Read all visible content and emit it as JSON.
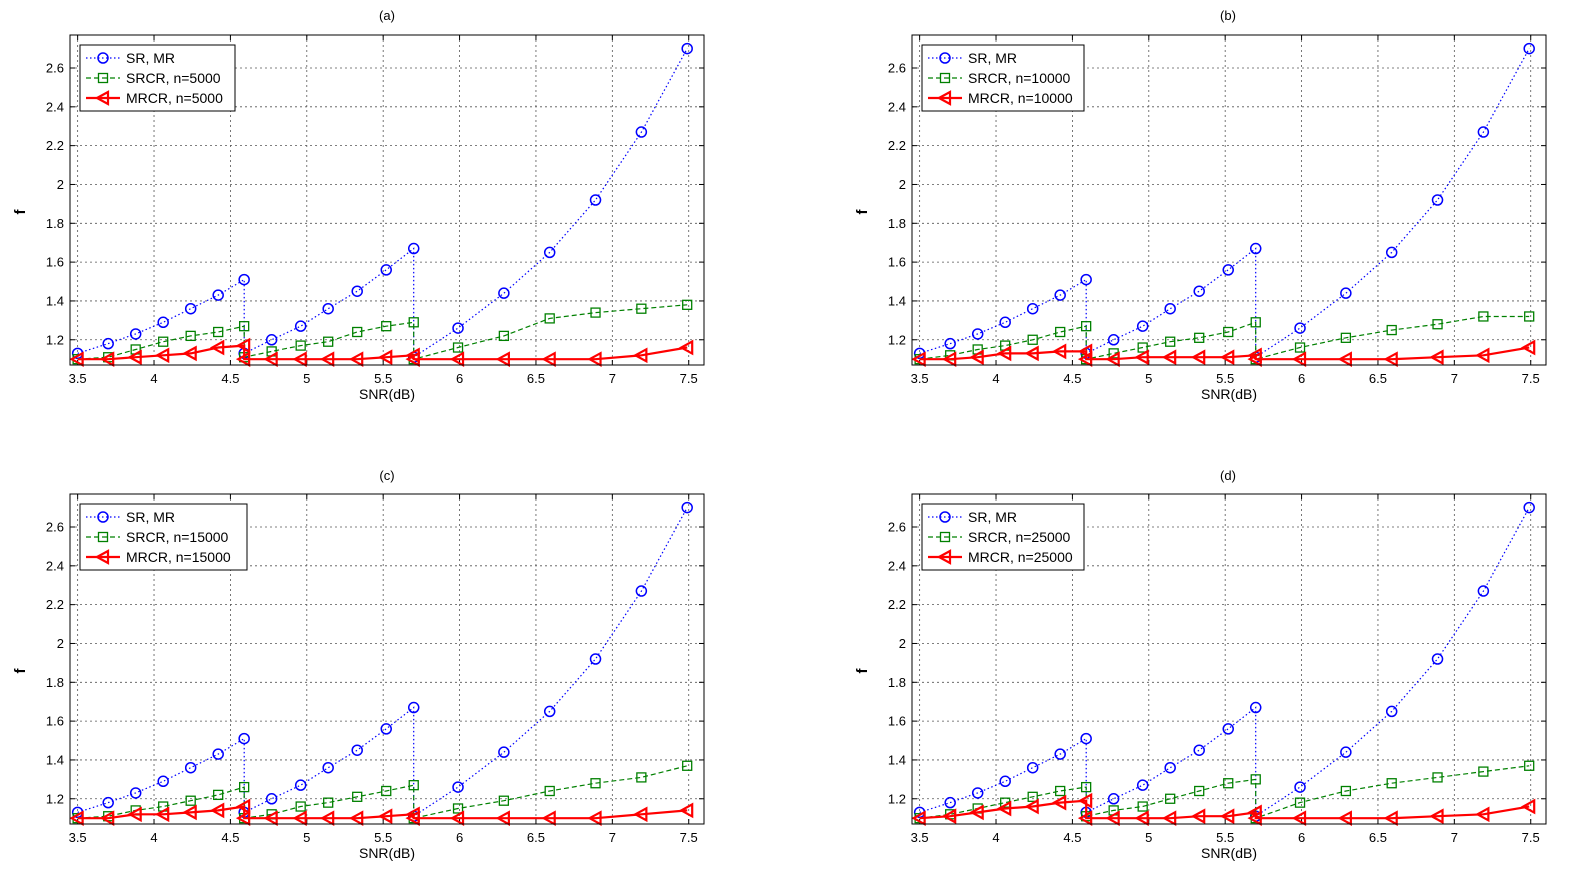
{
  "chart_data": [
    {
      "type": "line",
      "title": "(a)",
      "xlabel": "SNR(dB)",
      "ylabel": "f",
      "xlim": [
        3.45,
        7.6
      ],
      "ylim": [
        1.07,
        2.77
      ],
      "xticks": [
        3.5,
        4,
        4.5,
        5,
        5.5,
        6,
        6.5,
        7,
        7.5
      ],
      "xtick_labels": [
        "3.5",
        "4",
        "4.5",
        "5",
        "5.5",
        "6",
        "6.5",
        "7",
        "7.5"
      ],
      "yticks": [
        1.2,
        1.4,
        1.6,
        1.8,
        2.0,
        2.2,
        2.4,
        2.6
      ],
      "ytick_labels": [
        "1.2",
        "1.4",
        "1.6",
        "1.8",
        "2",
        "2.2",
        "2.4",
        "2.6"
      ],
      "grid": true,
      "legend_position": "top-left",
      "series": [
        {
          "name": "SR, MR",
          "color": "#0000ff",
          "line": "dotted",
          "marker": "circle",
          "x": [
            3.5,
            3.7,
            3.88,
            4.06,
            4.24,
            4.42,
            4.59,
            4.59,
            4.77,
            4.96,
            5.14,
            5.33,
            5.52,
            5.7,
            5.7,
            5.99,
            6.29,
            6.59,
            6.89,
            7.19,
            7.49
          ],
          "y": [
            1.13,
            1.18,
            1.23,
            1.29,
            1.36,
            1.43,
            1.51,
            1.13,
            1.2,
            1.27,
            1.36,
            1.45,
            1.56,
            1.67,
            1.11,
            1.26,
            1.44,
            1.65,
            1.92,
            2.27,
            2.7
          ]
        },
        {
          "name": "SRCR, n=5000",
          "color": "#008000",
          "line": "dashed",
          "marker": "square",
          "x": [
            3.5,
            3.7,
            3.88,
            4.06,
            4.24,
            4.42,
            4.59,
            4.59,
            4.77,
            4.96,
            5.14,
            5.33,
            5.52,
            5.7,
            5.7,
            5.99,
            6.29,
            6.59,
            6.89,
            7.19,
            7.49
          ],
          "y": [
            1.1,
            1.11,
            1.15,
            1.19,
            1.22,
            1.24,
            1.27,
            1.11,
            1.14,
            1.17,
            1.19,
            1.24,
            1.27,
            1.29,
            1.1,
            1.16,
            1.22,
            1.31,
            1.34,
            1.36,
            1.38
          ]
        },
        {
          "name": "MRCR, n=5000",
          "color": "#ff0000",
          "line": "solid",
          "marker": "triangle-left",
          "x": [
            3.5,
            3.7,
            3.88,
            4.06,
            4.24,
            4.42,
            4.59,
            4.59,
            4.77,
            4.96,
            5.14,
            5.33,
            5.52,
            5.7,
            5.7,
            5.99,
            6.29,
            6.59,
            6.89,
            7.19,
            7.49
          ],
          "y": [
            1.1,
            1.1,
            1.11,
            1.12,
            1.13,
            1.16,
            1.17,
            1.1,
            1.1,
            1.1,
            1.1,
            1.1,
            1.11,
            1.12,
            1.1,
            1.1,
            1.1,
            1.1,
            1.1,
            1.12,
            1.16
          ]
        }
      ]
    },
    {
      "type": "line",
      "title": "(b)",
      "xlabel": "SNR(dB)",
      "ylabel": "f",
      "xlim": [
        3.45,
        7.6
      ],
      "ylim": [
        1.07,
        2.77
      ],
      "xticks": [
        3.5,
        4,
        4.5,
        5,
        5.5,
        6,
        6.5,
        7,
        7.5
      ],
      "xtick_labels": [
        "3.5",
        "4",
        "4.5",
        "5",
        "5.5",
        "6",
        "6.5",
        "7",
        "7.5"
      ],
      "yticks": [
        1.2,
        1.4,
        1.6,
        1.8,
        2.0,
        2.2,
        2.4,
        2.6
      ],
      "ytick_labels": [
        "1.2",
        "1.4",
        "1.6",
        "1.8",
        "2",
        "2.2",
        "2.4",
        "2.6"
      ],
      "grid": true,
      "legend_position": "top-left",
      "series": [
        {
          "name": "SR, MR",
          "color": "#0000ff",
          "line": "dotted",
          "marker": "circle",
          "x": [
            3.5,
            3.7,
            3.88,
            4.06,
            4.24,
            4.42,
            4.59,
            4.59,
            4.77,
            4.96,
            5.14,
            5.33,
            5.52,
            5.7,
            5.7,
            5.99,
            6.29,
            6.59,
            6.89,
            7.19,
            7.49
          ],
          "y": [
            1.13,
            1.18,
            1.23,
            1.29,
            1.36,
            1.43,
            1.51,
            1.13,
            1.2,
            1.27,
            1.36,
            1.45,
            1.56,
            1.67,
            1.11,
            1.26,
            1.44,
            1.65,
            1.92,
            2.27,
            2.7
          ]
        },
        {
          "name": "SRCR, n=10000",
          "color": "#008000",
          "line": "dashed",
          "marker": "square",
          "x": [
            3.5,
            3.7,
            3.88,
            4.06,
            4.24,
            4.42,
            4.59,
            4.59,
            4.77,
            4.96,
            5.14,
            5.33,
            5.52,
            5.7,
            5.7,
            5.99,
            6.29,
            6.59,
            6.89,
            7.19,
            7.49
          ],
          "y": [
            1.1,
            1.12,
            1.15,
            1.17,
            1.2,
            1.24,
            1.27,
            1.1,
            1.13,
            1.16,
            1.19,
            1.21,
            1.24,
            1.29,
            1.1,
            1.16,
            1.21,
            1.25,
            1.28,
            1.32,
            1.32
          ]
        },
        {
          "name": "MRCR, n=10000",
          "color": "#ff0000",
          "line": "solid",
          "marker": "triangle-left",
          "x": [
            3.5,
            3.7,
            3.88,
            4.06,
            4.24,
            4.42,
            4.59,
            4.59,
            4.77,
            4.96,
            5.14,
            5.33,
            5.52,
            5.7,
            5.7,
            5.99,
            6.29,
            6.59,
            6.89,
            7.19,
            7.49
          ],
          "y": [
            1.1,
            1.1,
            1.11,
            1.13,
            1.13,
            1.14,
            1.14,
            1.1,
            1.1,
            1.11,
            1.11,
            1.11,
            1.11,
            1.12,
            1.1,
            1.1,
            1.1,
            1.1,
            1.11,
            1.12,
            1.16
          ]
        }
      ]
    },
    {
      "type": "line",
      "title": "(c)",
      "xlabel": "SNR(dB)",
      "ylabel": "f",
      "xlim": [
        3.45,
        7.6
      ],
      "ylim": [
        1.07,
        2.77
      ],
      "xticks": [
        3.5,
        4,
        4.5,
        5,
        5.5,
        6,
        6.5,
        7,
        7.5
      ],
      "xtick_labels": [
        "3.5",
        "4",
        "4.5",
        "5",
        "5.5",
        "6",
        "6.5",
        "7",
        "7.5"
      ],
      "yticks": [
        1.2,
        1.4,
        1.6,
        1.8,
        2.0,
        2.2,
        2.4,
        2.6
      ],
      "ytick_labels": [
        "1.2",
        "1.4",
        "1.6",
        "1.8",
        "2",
        "2.2",
        "2.4",
        "2.6"
      ],
      "grid": true,
      "legend_position": "top-left",
      "series": [
        {
          "name": "SR, MR",
          "color": "#0000ff",
          "line": "dotted",
          "marker": "circle",
          "x": [
            3.5,
            3.7,
            3.88,
            4.06,
            4.24,
            4.42,
            4.59,
            4.59,
            4.77,
            4.96,
            5.14,
            5.33,
            5.52,
            5.7,
            5.7,
            5.99,
            6.29,
            6.59,
            6.89,
            7.19,
            7.49
          ],
          "y": [
            1.13,
            1.18,
            1.23,
            1.29,
            1.36,
            1.43,
            1.51,
            1.13,
            1.2,
            1.27,
            1.36,
            1.45,
            1.56,
            1.67,
            1.11,
            1.26,
            1.44,
            1.65,
            1.92,
            2.27,
            2.7
          ]
        },
        {
          "name": "SRCR, n=15000",
          "color": "#008000",
          "line": "dashed",
          "marker": "square",
          "x": [
            3.5,
            3.7,
            3.88,
            4.06,
            4.24,
            4.42,
            4.59,
            4.59,
            4.77,
            4.96,
            5.14,
            5.33,
            5.52,
            5.7,
            5.7,
            5.99,
            6.29,
            6.59,
            6.89,
            7.19,
            7.49
          ],
          "y": [
            1.1,
            1.11,
            1.14,
            1.16,
            1.19,
            1.22,
            1.26,
            1.1,
            1.12,
            1.16,
            1.18,
            1.21,
            1.24,
            1.27,
            1.1,
            1.15,
            1.19,
            1.24,
            1.28,
            1.31,
            1.37
          ]
        },
        {
          "name": "MRCR, n=15000",
          "color": "#ff0000",
          "line": "solid",
          "marker": "triangle-left",
          "x": [
            3.5,
            3.7,
            3.88,
            4.06,
            4.24,
            4.42,
            4.59,
            4.59,
            4.77,
            4.96,
            5.14,
            5.33,
            5.52,
            5.7,
            5.7,
            5.99,
            6.29,
            6.59,
            6.89,
            7.19,
            7.49
          ],
          "y": [
            1.1,
            1.1,
            1.12,
            1.12,
            1.13,
            1.14,
            1.16,
            1.1,
            1.1,
            1.1,
            1.1,
            1.1,
            1.11,
            1.12,
            1.1,
            1.1,
            1.1,
            1.1,
            1.1,
            1.12,
            1.14
          ]
        }
      ]
    },
    {
      "type": "line",
      "title": "(d)",
      "xlabel": "SNR(dB)",
      "ylabel": "f",
      "xlim": [
        3.45,
        7.6
      ],
      "ylim": [
        1.07,
        2.77
      ],
      "xticks": [
        3.5,
        4,
        4.5,
        5,
        5.5,
        6,
        6.5,
        7,
        7.5
      ],
      "xtick_labels": [
        "3.5",
        "4",
        "4.5",
        "5",
        "5.5",
        "6",
        "6.5",
        "7",
        "7.5"
      ],
      "yticks": [
        1.2,
        1.4,
        1.6,
        1.8,
        2.0,
        2.2,
        2.4,
        2.6
      ],
      "ytick_labels": [
        "1.2",
        "1.4",
        "1.6",
        "1.8",
        "2",
        "2.2",
        "2.4",
        "2.6"
      ],
      "grid": true,
      "legend_position": "top-left",
      "series": [
        {
          "name": "SR, MR",
          "color": "#0000ff",
          "line": "dotted",
          "marker": "circle",
          "x": [
            3.5,
            3.7,
            3.88,
            4.06,
            4.24,
            4.42,
            4.59,
            4.59,
            4.77,
            4.96,
            5.14,
            5.33,
            5.52,
            5.7,
            5.7,
            5.99,
            6.29,
            6.59,
            6.89,
            7.19,
            7.49
          ],
          "y": [
            1.13,
            1.18,
            1.23,
            1.29,
            1.36,
            1.43,
            1.51,
            1.13,
            1.2,
            1.27,
            1.36,
            1.45,
            1.56,
            1.67,
            1.11,
            1.26,
            1.44,
            1.65,
            1.92,
            2.27,
            2.7
          ]
        },
        {
          "name": "SRCR, n=25000",
          "color": "#008000",
          "line": "dashed",
          "marker": "square",
          "x": [
            3.5,
            3.7,
            3.88,
            4.06,
            4.24,
            4.42,
            4.59,
            4.59,
            4.77,
            4.96,
            5.14,
            5.33,
            5.52,
            5.7,
            5.7,
            5.99,
            6.29,
            6.59,
            6.89,
            7.19,
            7.49
          ],
          "y": [
            1.1,
            1.12,
            1.15,
            1.18,
            1.21,
            1.24,
            1.26,
            1.11,
            1.14,
            1.16,
            1.2,
            1.24,
            1.28,
            1.3,
            1.1,
            1.18,
            1.24,
            1.28,
            1.31,
            1.34,
            1.37
          ]
        },
        {
          "name": "MRCR, n=25000",
          "color": "#ff0000",
          "line": "solid",
          "marker": "triangle-left",
          "x": [
            3.5,
            3.7,
            3.88,
            4.06,
            4.24,
            4.42,
            4.59,
            4.59,
            4.77,
            4.96,
            5.14,
            5.33,
            5.52,
            5.7,
            5.7,
            5.99,
            6.29,
            6.59,
            6.89,
            7.19,
            7.49
          ],
          "y": [
            1.1,
            1.11,
            1.13,
            1.15,
            1.16,
            1.18,
            1.19,
            1.1,
            1.1,
            1.1,
            1.1,
            1.11,
            1.11,
            1.13,
            1.1,
            1.1,
            1.1,
            1.1,
            1.11,
            1.12,
            1.16
          ]
        }
      ]
    }
  ]
}
